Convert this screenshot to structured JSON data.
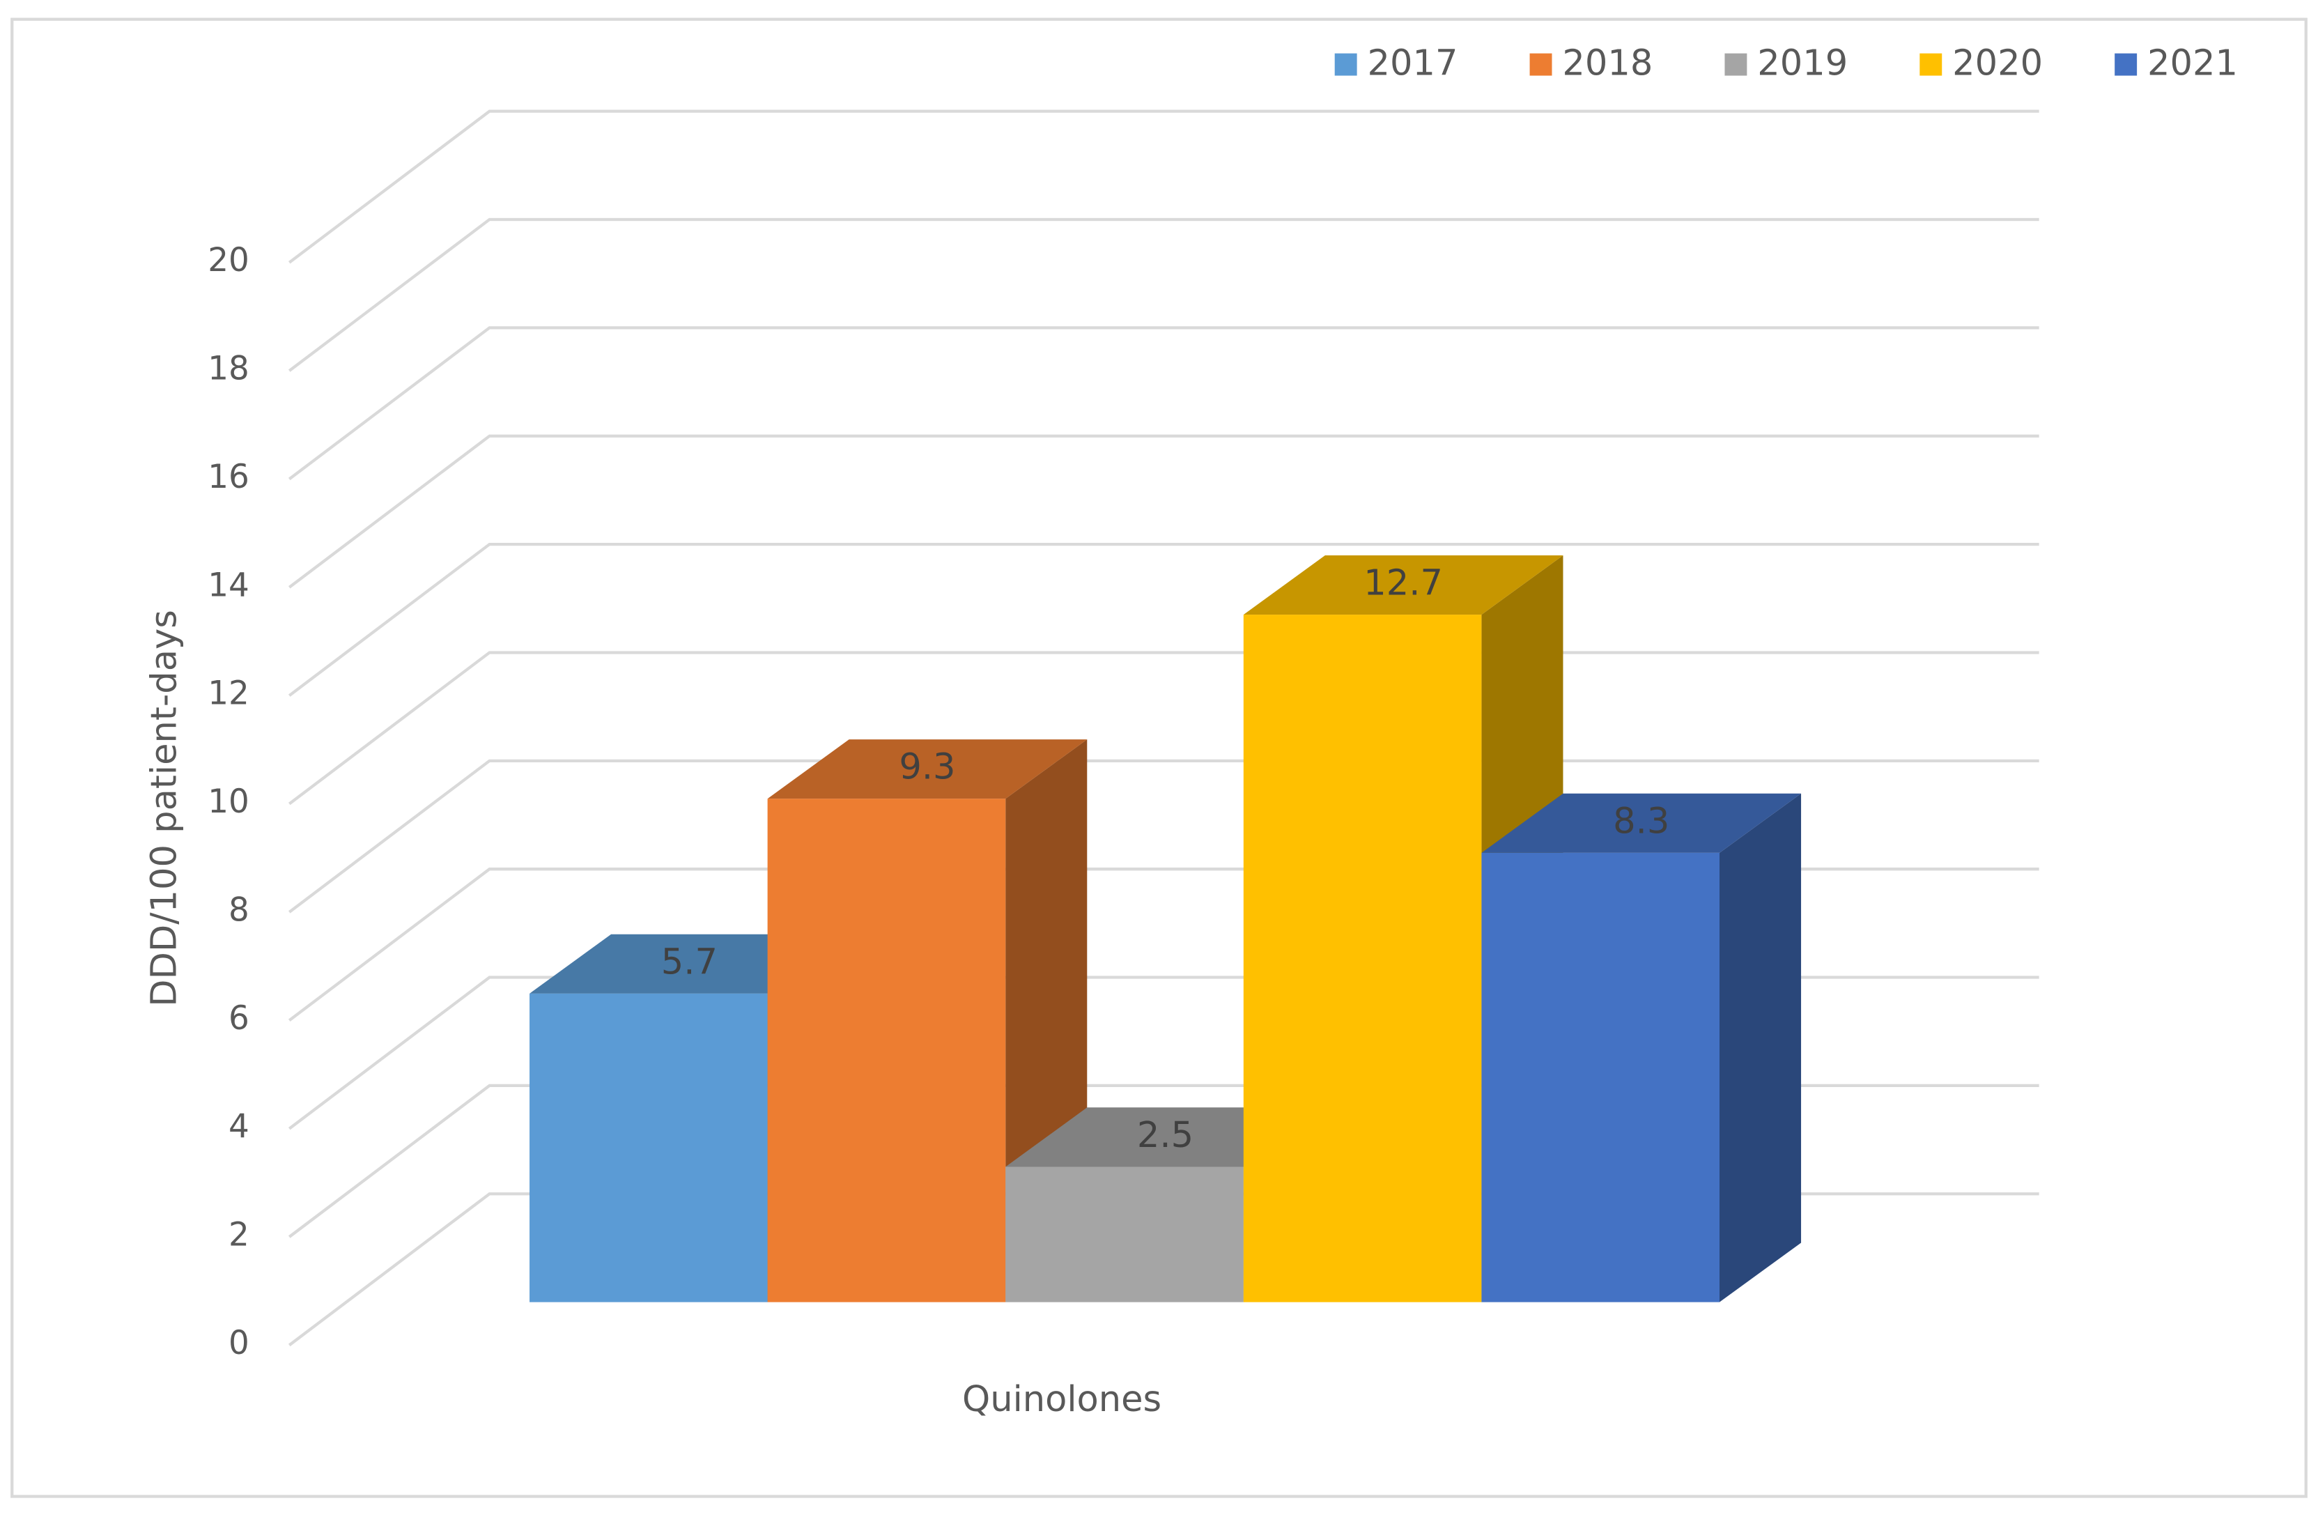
{
  "chart_data": {
    "type": "bar3d",
    "y_label": "DDD/100 patient-days",
    "categories": [
      "Quinolones"
    ],
    "series": [
      {
        "name": "2017",
        "color": "#5b9bd5",
        "values": [
          5.7
        ]
      },
      {
        "name": "2018",
        "color": "#ed7d31",
        "values": [
          9.3
        ]
      },
      {
        "name": "2019",
        "color": "#a5a5a5",
        "values": [
          2.5
        ]
      },
      {
        "name": "2020",
        "color": "#ffc000",
        "values": [
          12.7
        ]
      },
      {
        "name": "2021",
        "color": "#4472c4",
        "values": [
          8.3
        ]
      }
    ],
    "ylim": [
      0,
      20
    ],
    "yticks": [
      0,
      2,
      4,
      6,
      8,
      10,
      12,
      14,
      16,
      18,
      20
    ],
    "grid": true,
    "legend": "top-right",
    "data_labels": true
  }
}
